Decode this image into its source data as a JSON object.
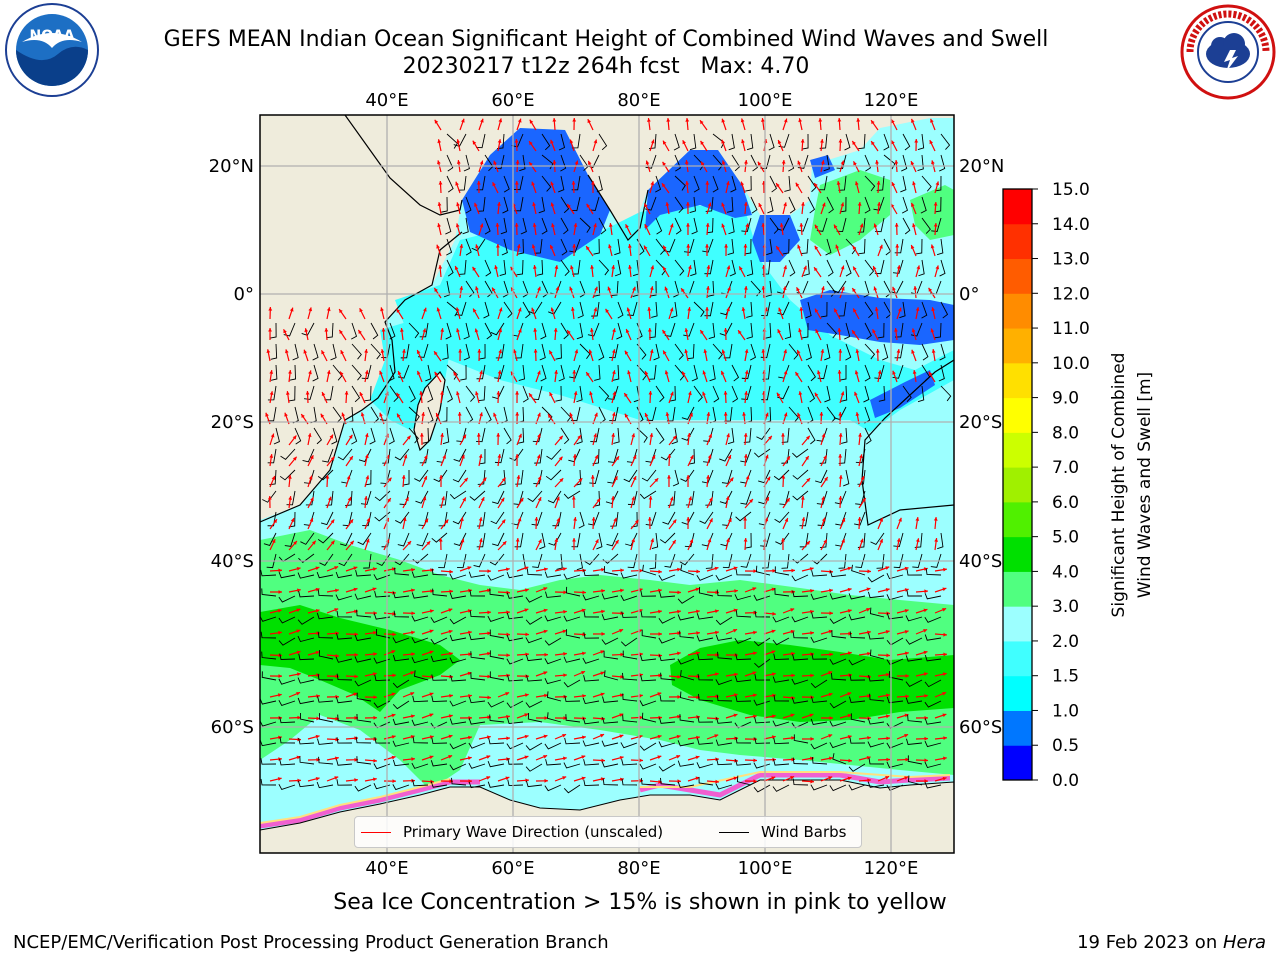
{
  "header": {
    "title_line1": "GEFS MEAN Indian Ocean Significant Height of Combined Wind Waves and Swell",
    "title_line2": "20230217 t12z 264h fcst   Max: 4.70"
  },
  "logos": {
    "left": {
      "name": "noaa-logo",
      "text": "NOAA",
      "ring_text": "NATIONAL OCEANIC AND ATMOSPHERIC ADMINISTRATION · U.S. DEPARTMENT OF COMMERCE"
    },
    "right": {
      "name": "nws-logo",
      "ring_text": "NATIONAL WEATHER SERVICE"
    }
  },
  "map": {
    "lon_labels": [
      "40°E",
      "60°E",
      "80°E",
      "100°E",
      "120°E"
    ],
    "lat_labels": [
      "20°N",
      "0°",
      "20°S",
      "40°S",
      "60°S"
    ],
    "legend": {
      "wave_direction": "Primary Wave Direction (unscaled)",
      "wind_barbs": "Wind Barbs",
      "wave_color": "#ff0000",
      "barb_color": "#000000"
    },
    "land_color": "#efecdc",
    "sea_ice_note": "Sea Ice Concentration > 15% is shown in pink to yellow"
  },
  "colorbar": {
    "label_line1": "Significant Height of Combined",
    "label_line2": "Wind Waves and Swell [m]",
    "ticks": [
      "0.0",
      "0.5",
      "1.0",
      "1.5",
      "2.0",
      "3.0",
      "4.0",
      "5.0",
      "6.0",
      "7.0",
      "8.0",
      "9.0",
      "10.0",
      "11.0",
      "12.0",
      "13.0",
      "14.0",
      "15.0"
    ],
    "colors": [
      "#0000ff",
      "#0077ff",
      "#00ffff",
      "#40ffff",
      "#9cffff",
      "#50ff80",
      "#00e000",
      "#50f000",
      "#a0f000",
      "#ccff00",
      "#ffff00",
      "#ffe000",
      "#ffb000",
      "#ff8c00",
      "#ff5c00",
      "#ff3000",
      "#ff0000"
    ]
  },
  "footer": {
    "left": "NCEP/EMC/Verification Post Processing Product Generation Branch",
    "right_prefix": "19 Feb 2023 on ",
    "right_machine": "Hera"
  }
}
